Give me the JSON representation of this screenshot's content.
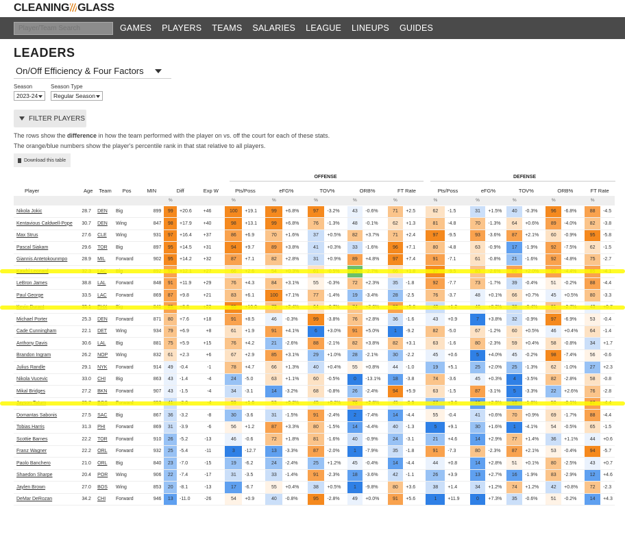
{
  "logo": {
    "left": "CLEANING",
    "right": "GLASS"
  },
  "nav": {
    "search_placeholder": "Player/Team Search",
    "items": [
      "GAMES",
      "PLAYERS",
      "TEAMS",
      "SALARIES",
      "LEAGUE",
      "LINEUPS",
      "GUIDES"
    ]
  },
  "page": {
    "title": "LEADERS",
    "view_select": "On/Off Efficiency & Four Factors",
    "season_label": "Season",
    "season_value": "2023-24",
    "season_type_label": "Season Type",
    "season_type_value": "Regular Season",
    "filter_label": "FILTER PLAYERS",
    "desc1_pre": "The rows show the ",
    "desc1_bold": "difference",
    "desc1_post": " in how the team performed with the player on vs. off the court for each of these stats.",
    "desc2": "The orange/blue numbers show the player's percentile rank in that stat relative to all players.",
    "download_label": "Download this table"
  },
  "table": {
    "group_offense": "OFFENSE",
    "group_defense": "DEFENSE",
    "headers": [
      "Player",
      "Age",
      "Team",
      "Pos",
      "MIN",
      "Diff",
      "",
      "Exp W",
      "Pts/Poss",
      "",
      "eFG%",
      "",
      "TOV%",
      "",
      "ORB%",
      "",
      "FT Rate",
      "",
      "Pts/Poss",
      "",
      "eFG%",
      "",
      "TOV%",
      "",
      "ORB%",
      "",
      "FT Rate",
      ""
    ],
    "pct_symbol": "%",
    "rows": [
      [
        "Nikola Jokic",
        "28.7",
        "DEN",
        "Big",
        "899",
        "99",
        "+20.6",
        "+46",
        "100",
        "+19.1",
        "99",
        "+6.8%",
        "97",
        "-3.2%",
        "43",
        "-0.6%",
        "71",
        "+2.5",
        "62",
        "-1.5",
        "31",
        "+1.5%",
        "40",
        "-0.3%",
        "96",
        "-6.8%",
        "88",
        "-4.5"
      ],
      [
        "Kentavious Caldwell-Pope",
        "30.7",
        "DEN",
        "Wing",
        "847",
        "98",
        "+17.9",
        "+40",
        "98",
        "+13.1",
        "99",
        "+6.8%",
        "76",
        "-1.3%",
        "48",
        "-0.1%",
        "62",
        "+1.3",
        "81",
        "-4.8",
        "70",
        "-1.3%",
        "64",
        "+0.6%",
        "89",
        "-4.0%",
        "82",
        "-3.8"
      ],
      [
        "Max Strus",
        "27.6",
        "CLE",
        "Wing",
        "931",
        "97",
        "+16.4",
        "+37",
        "86",
        "+6.9",
        "70",
        "+1.6%",
        "37",
        "+0.5%",
        "82",
        "+3.7%",
        "71",
        "+2.4",
        "97",
        "-9.5",
        "93",
        "-3.6%",
        "87",
        "+2.1%",
        "60",
        "-0.9%",
        "95",
        "-5.8"
      ],
      [
        "Pascal Siakam",
        "29.6",
        "TOR",
        "Big",
        "897",
        "95",
        "+14.5",
        "+31",
        "94",
        "+9.7",
        "89",
        "+3.8%",
        "41",
        "+0.3%",
        "33",
        "-1.6%",
        "96",
        "+7.1",
        "80",
        "-4.8",
        "63",
        "-0.9%",
        "17",
        "-1.9%",
        "92",
        "-7.5%",
        "62",
        "-1.5"
      ],
      [
        "Giannis Antetokounmpo",
        "28.9",
        "MIL",
        "Forward",
        "902",
        "95",
        "+14.2",
        "+32",
        "87",
        "+7.1",
        "82",
        "+2.8%",
        "31",
        "+0.9%",
        "89",
        "+4.8%",
        "97",
        "+7.4",
        "91",
        "-7.1",
        "61",
        "-0.8%",
        "21",
        "-1.6%",
        "92",
        "-4.8%",
        "75",
        "-2.7"
      ],
      [
        "Kawhi Leonard",
        "32.3",
        "LAC",
        "Big",
        "892",
        "91",
        "+12.1",
        "+27",
        "66",
        "+2.6",
        "54",
        "+0.3%",
        "61",
        "-0.5%",
        "24",
        "-2.7%",
        "66",
        "+1.8",
        "97",
        "-9.5",
        "83",
        "-2.6%",
        "86",
        "+2.0%",
        "90",
        "-4.4%",
        "85",
        "-4.1"
      ],
      [
        "LeBron James",
        "38.8",
        "LAL",
        "Forward",
        "848",
        "91",
        "+11.9",
        "+29",
        "76",
        "+4.3",
        "84",
        "+3.1%",
        "55",
        "-0.3%",
        "72",
        "+2.3%",
        "35",
        "-1.8",
        "92",
        "-7.7",
        "73",
        "-1.7%",
        "39",
        "-0.4%",
        "51",
        "-0.2%",
        "88",
        "-4.4"
      ],
      [
        "Paul George",
        "33.5",
        "LAC",
        "Forward",
        "869",
        "87",
        "+9.8",
        "+21",
        "83",
        "+6.1",
        "100",
        "+7.1%",
        "77",
        "-1.4%",
        "19",
        "-3.4%",
        "28",
        "-2.5",
        "76",
        "-3.7",
        "48",
        "+0.1%",
        "66",
        "+0.7%",
        "45",
        "+0.5%",
        "80",
        "-3.3"
      ],
      [
        "Kevin Durant",
        "35.1",
        "PHX",
        "Big",
        "841",
        "85",
        "+8.8",
        "+22",
        "95",
        "+10.0",
        "79",
        "+2.4%",
        "64",
        "-0.7%",
        "74",
        "+2.6%",
        "92",
        "+5.6",
        "40",
        "+1.2",
        "46",
        "+0.2%",
        "38",
        "-0.4%",
        "81",
        "-2.7%",
        "43",
        "+0.7"
      ],
      [
        "Michael Porter",
        "25.3",
        "DEN",
        "Forward",
        "871",
        "80",
        "+7.6",
        "+18",
        "91",
        "+8.5",
        "46",
        "-0.3%",
        "99",
        "-3.8%",
        "76",
        "+2.8%",
        "36",
        "-1.6",
        "43",
        "+0.9",
        "7",
        "+3.8%",
        "32",
        "-0.9%",
        "97",
        "-6.9%",
        "53",
        "-0.4"
      ],
      [
        "Cade Cunningham",
        "22.1",
        "DET",
        "Wing",
        "934",
        "79",
        "+6.9",
        "+8",
        "61",
        "+1.9",
        "91",
        "+4.1%",
        "6",
        "+3.0%",
        "91",
        "+5.0%",
        "1",
        "-9.2",
        "82",
        "-5.0",
        "67",
        "-1.2%",
        "60",
        "+0.5%",
        "46",
        "+0.4%",
        "64",
        "-1.4"
      ],
      [
        "Anthony Davis",
        "30.6",
        "LAL",
        "Big",
        "881",
        "75",
        "+5.9",
        "+15",
        "76",
        "+4.2",
        "21",
        "-2.6%",
        "88",
        "-2.1%",
        "82",
        "+3.8%",
        "82",
        "+3.1",
        "63",
        "-1.6",
        "80",
        "-2.3%",
        "59",
        "+0.4%",
        "58",
        "-0.8%",
        "34",
        "+1.7"
      ],
      [
        "Brandon Ingram",
        "26.2",
        "NOP",
        "Wing",
        "832",
        "61",
        "+2.3",
        "+6",
        "67",
        "+2.9",
        "85",
        "+3.1%",
        "29",
        "+1.0%",
        "28",
        "-2.1%",
        "30",
        "-2.2",
        "45",
        "+0.6",
        "5",
        "+4.0%",
        "45",
        "-0.2%",
        "98",
        "-7.4%",
        "56",
        "-0.6"
      ],
      [
        "Julius Randle",
        "29.1",
        "NYK",
        "Forward",
        "914",
        "49",
        "-0.4",
        "-1",
        "78",
        "+4.7",
        "66",
        "+1.3%",
        "40",
        "+0.4%",
        "55",
        "+0.8%",
        "44",
        "-1.0",
        "19",
        "+5.1",
        "25",
        "+2.0%",
        "25",
        "-1.3%",
        "62",
        "-1.0%",
        "27",
        "+2.3"
      ],
      [
        "Nikola Vucevic",
        "33.0",
        "CHI",
        "Big",
        "863",
        "43",
        "-1.4",
        "-4",
        "24",
        "-5.0",
        "63",
        "+1.1%",
        "60",
        "-0.5%",
        "0",
        "-13.1%",
        "18",
        "-3.8",
        "74",
        "-3.6",
        "45",
        "+0.3%",
        "4",
        "-3.5%",
        "82",
        "-2.8%",
        "58",
        "-0.8"
      ],
      [
        "Mikal Bridges",
        "27.2",
        "BKN",
        "Forward",
        "907",
        "43",
        "-1.5",
        "-4",
        "34",
        "-3.1",
        "14",
        "-3.2%",
        "68",
        "-0.8%",
        "26",
        "-2.4%",
        "94",
        "+5.9",
        "63",
        "-1.5",
        "87",
        "-3.1%",
        "5",
        "-3.3%",
        "22",
        "+2.6%",
        "76",
        "-2.8"
      ],
      [
        "Jayson Tatum",
        "25.7",
        "BOS",
        "Forward",
        "953",
        "41",
        "-2.0",
        "-4",
        "59",
        "+1.6",
        "53",
        "+0.2%",
        "45",
        "+0.2%",
        "76",
        "+2.8%",
        "45",
        "-0.9",
        "27",
        "+3.6",
        "16",
        "+2.9%",
        "18",
        "-1.8%",
        "50",
        "-0.1%",
        "87",
        "-4.4"
      ],
      [
        "Domantas Sabonis",
        "27.5",
        "SAC",
        "Big",
        "867",
        "36",
        "-3.2",
        "-8",
        "30",
        "-3.6",
        "31",
        "-1.5%",
        "91",
        "-2.4%",
        "2",
        "-7.4%",
        "14",
        "-4.4",
        "55",
        "-0.4",
        "41",
        "+0.6%",
        "70",
        "+0.9%",
        "69",
        "-1.7%",
        "88",
        "-4.4"
      ],
      [
        "Tobias Harris",
        "31.3",
        "PHI",
        "Forward",
        "869",
        "31",
        "-3.9",
        "-6",
        "56",
        "+1.2",
        "87",
        "+3.3%",
        "80",
        "-1.5%",
        "14",
        "-4.4%",
        "40",
        "-1.3",
        "5",
        "+9.1",
        "30",
        "+1.6%",
        "1",
        "-4.1%",
        "54",
        "-0.5%",
        "65",
        "-1.5"
      ],
      [
        "Scottie Barnes",
        "22.2",
        "TOR",
        "Forward",
        "910",
        "26",
        "-5.2",
        "-13",
        "46",
        "-0.6",
        "72",
        "+1.8%",
        "81",
        "-1.6%",
        "40",
        "-0.9%",
        "24",
        "-3.1",
        "21",
        "+4.6",
        "14",
        "+2.9%",
        "77",
        "+1.4%",
        "36",
        "+1.1%",
        "44",
        "+0.6"
      ],
      [
        "Franz Wagner",
        "22.2",
        "ORL",
        "Forward",
        "932",
        "25",
        "-5.4",
        "-11",
        "3",
        "-12.7",
        "13",
        "-3.3%",
        "87",
        "-2.0%",
        "1",
        "-7.9%",
        "35",
        "-1.8",
        "91",
        "-7.3",
        "80",
        "-2.3%",
        "87",
        "+2.1%",
        "53",
        "-0.4%",
        "94",
        "-5.7"
      ],
      [
        "Paolo Banchero",
        "21.0",
        "ORL",
        "Big",
        "840",
        "23",
        "-7.0",
        "-15",
        "19",
        "-6.2",
        "24",
        "-2.4%",
        "25",
        "+1.2%",
        "45",
        "-0.4%",
        "14",
        "-4.4",
        "44",
        "+0.8",
        "14",
        "+2.8%",
        "51",
        "+0.1%",
        "80",
        "-2.5%",
        "43",
        "+0.7"
      ],
      [
        "Shaedon Sharpe",
        "20.4",
        "POR",
        "Wing",
        "906",
        "22",
        "-7.4",
        "-17",
        "31",
        "-3.5",
        "33",
        "-1.4%",
        "91",
        "-2.3%",
        "18",
        "-3.6%",
        "42",
        "-1.1",
        "26",
        "+3.9",
        "13",
        "+2.7%",
        "16",
        "-1.9%",
        "83",
        "-2.9%",
        "12",
        "+4.6"
      ],
      [
        "Jaylen Brown",
        "27.0",
        "BOS",
        "Wing",
        "853",
        "20",
        "-8.1",
        "-13",
        "17",
        "-6.7",
        "55",
        "+0.4%",
        "38",
        "+0.5%",
        "1",
        "-9.8%",
        "80",
        "+3.6",
        "38",
        "+1.4",
        "34",
        "+1.2%",
        "74",
        "+1.2%",
        "42",
        "+0.8%",
        "72",
        "-2.3"
      ],
      [
        "DeMar DeRozan",
        "34.2",
        "CHI",
        "Forward",
        "946",
        "13",
        "-11.0",
        "-26",
        "54",
        "+0.9",
        "40",
        "-0.8%",
        "95",
        "-2.8%",
        "49",
        "+0.0%",
        "91",
        "+5.6",
        "1",
        "+11.9",
        "0",
        "+7.3%",
        "35",
        "-0.6%",
        "51",
        "-0.2%",
        "14",
        "+4.3"
      ]
    ]
  },
  "highlighted_players": [
    "Kawhi Leonard",
    "Kevin Durant",
    "Jayson Tatum"
  ]
}
